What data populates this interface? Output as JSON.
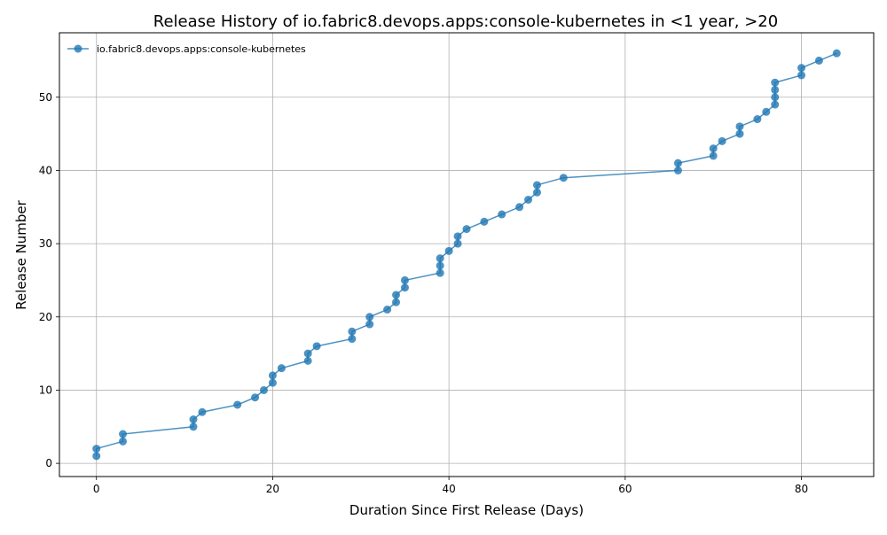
{
  "chart_data": {
    "type": "line",
    "title": "Release History of io.fabric8.devops.apps:console-kubernetes in <1 year, >20",
    "xlabel": "Duration Since First Release (Days)",
    "ylabel": "Release Number",
    "xlim": [
      -4.2,
      88.2
    ],
    "ylim": [
      -1.8,
      58.8
    ],
    "x_ticks": [
      0,
      20,
      40,
      60,
      80
    ],
    "y_ticks": [
      0,
      10,
      20,
      30,
      40,
      50
    ],
    "grid": true,
    "legend": "top-left",
    "colors": {
      "series": "#1f77b4"
    },
    "series": [
      {
        "name": "io.fabric8.devops.apps:console-kubernetes",
        "x": [
          0,
          0,
          3,
          3,
          11,
          11,
          12,
          16,
          18,
          19,
          20,
          20,
          21,
          24,
          24,
          25,
          29,
          29,
          31,
          31,
          33,
          34,
          34,
          35,
          35,
          39,
          39,
          39,
          40,
          41,
          41,
          42,
          44,
          46,
          48,
          49,
          50,
          50,
          53,
          66,
          66,
          70,
          70,
          71,
          73,
          73,
          75,
          76,
          77,
          77,
          77,
          77,
          80,
          80,
          82,
          84
        ],
        "y": [
          1,
          2,
          3,
          4,
          5,
          6,
          7,
          8,
          9,
          10,
          11,
          12,
          13,
          14,
          15,
          16,
          17,
          18,
          19,
          20,
          21,
          22,
          23,
          24,
          25,
          26,
          27,
          28,
          29,
          30,
          31,
          32,
          33,
          34,
          35,
          36,
          37,
          38,
          39,
          40,
          41,
          42,
          43,
          44,
          45,
          46,
          47,
          48,
          49,
          50,
          51,
          52,
          53,
          54,
          55,
          56
        ]
      }
    ]
  }
}
